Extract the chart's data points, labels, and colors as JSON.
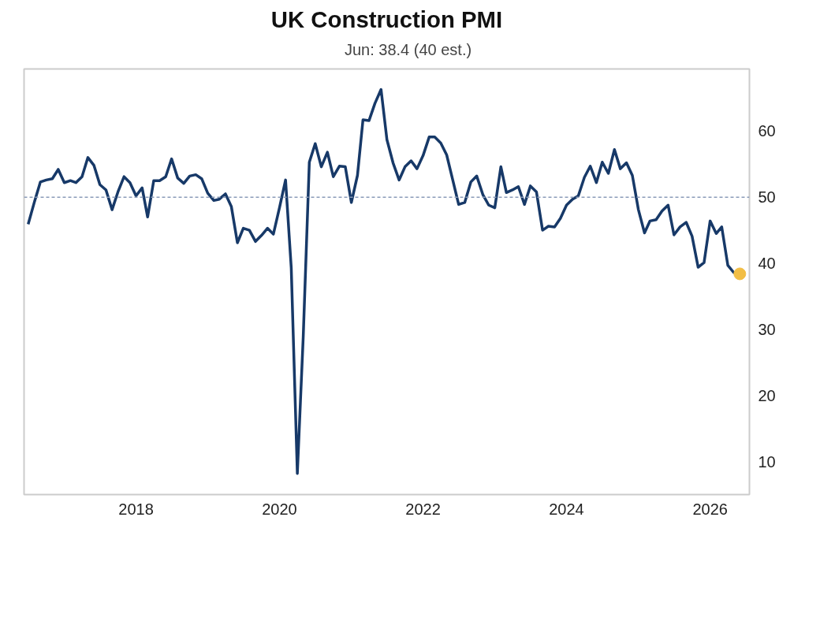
{
  "chart_data": {
    "type": "line",
    "title": "UK Construction PMI",
    "xlim": [
      "2016-06-10",
      "2026-07-20"
    ],
    "xticks": [
      "2018",
      "2020",
      "2022",
      "2024",
      "2026"
    ],
    "ylim": [
      5,
      69.4
    ],
    "yticks": [
      10,
      20,
      30,
      40,
      50,
      60
    ],
    "grid": false,
    "legend": "top",
    "line_style": "solid",
    "marker": "none",
    "ref_lines": [
      {
        "axis": "y",
        "value": 50,
        "color": "#8a9bb8",
        "line_style": "dashed"
      }
    ],
    "series": [
      {
        "name": "Jun: 38.4 (40 est.)",
        "color": "#173968",
        "x": [
          "2016-07",
          "2016-08",
          "2016-09",
          "2016-10",
          "2016-11",
          "2016-12",
          "2017-01",
          "2017-02",
          "2017-03",
          "2017-04",
          "2017-05",
          "2017-06",
          "2017-07",
          "2017-08",
          "2017-09",
          "2017-10",
          "2017-11",
          "2017-12",
          "2018-01",
          "2018-02",
          "2018-03",
          "2018-04",
          "2018-05",
          "2018-06",
          "2018-07",
          "2018-08",
          "2018-09",
          "2018-10",
          "2018-11",
          "2018-12",
          "2019-01",
          "2019-02",
          "2019-03",
          "2019-04",
          "2019-05",
          "2019-06",
          "2019-07",
          "2019-08",
          "2019-09",
          "2019-10",
          "2019-11",
          "2019-12",
          "2020-01",
          "2020-02",
          "2020-03",
          "2020-04",
          "2020-05",
          "2020-06",
          "2020-07",
          "2020-08",
          "2020-09",
          "2020-10",
          "2020-11",
          "2020-12",
          "2021-01",
          "2021-02",
          "2021-03",
          "2021-04",
          "2021-05",
          "2021-06",
          "2021-07",
          "2021-08",
          "2021-09",
          "2021-10",
          "2021-11",
          "2021-12",
          "2022-01",
          "2022-02",
          "2022-03",
          "2022-04",
          "2022-05",
          "2022-06",
          "2022-07",
          "2022-08",
          "2022-09",
          "2022-10",
          "2022-11",
          "2022-12",
          "2023-01",
          "2023-02",
          "2023-03",
          "2023-04",
          "2023-05",
          "2023-06",
          "2023-07",
          "2023-08",
          "2023-09",
          "2023-10",
          "2023-11",
          "2023-12",
          "2024-01",
          "2024-02",
          "2024-03",
          "2024-04",
          "2024-05",
          "2024-06",
          "2024-07",
          "2024-08",
          "2024-09",
          "2024-10",
          "2024-11",
          "2024-12",
          "2025-01",
          "2025-02",
          "2025-03",
          "2025-04",
          "2025-05",
          "2025-06",
          "2025-07",
          "2025-08",
          "2025-09",
          "2025-10",
          "2025-11",
          "2025-12",
          "2026-01",
          "2026-02",
          "2026-03",
          "2026-04",
          "2026-05",
          "2026-06"
        ],
        "values": [
          45.9,
          49.2,
          52.3,
          52.6,
          52.8,
          54.2,
          52.2,
          52.5,
          52.2,
          53.1,
          56.0,
          54.8,
          51.9,
          51.1,
          48.1,
          50.8,
          53.1,
          52.2,
          50.2,
          51.4,
          47.0,
          52.5,
          52.5,
          53.1,
          55.8,
          52.9,
          52.1,
          53.2,
          53.4,
          52.8,
          50.6,
          49.5,
          49.7,
          50.5,
          48.6,
          43.1,
          45.3,
          45.0,
          43.3,
          44.2,
          45.3,
          44.4,
          48.4,
          52.6,
          39.3,
          8.2,
          28.9,
          55.3,
          58.1,
          54.6,
          56.8,
          53.1,
          54.7,
          54.6,
          49.2,
          53.3,
          61.7,
          61.6,
          64.2,
          66.3,
          58.7,
          55.2,
          52.6,
          54.6,
          55.5,
          54.3,
          56.3,
          59.1,
          59.1,
          58.2,
          56.4,
          52.6,
          48.9,
          49.2,
          52.3,
          53.2,
          50.4,
          48.8,
          48.4,
          54.6,
          50.7,
          51.1,
          51.6,
          48.9,
          51.7,
          50.8,
          45.0,
          45.6,
          45.5,
          46.8,
          48.8,
          49.7,
          50.2,
          53.0,
          54.7,
          52.2,
          55.3,
          53.6,
          57.2,
          54.3,
          55.2,
          53.3,
          48.1,
          44.6,
          46.4,
          46.6,
          47.9,
          48.8,
          44.3,
          45.5,
          46.2,
          44.1,
          39.4,
          40.1,
          46.4,
          44.5,
          45.5,
          39.7,
          38.6,
          38.4
        ]
      },
      {
        "color": "#f2be45",
        "type": "scatter",
        "marker": "circle",
        "x": [
          "2026-06"
        ],
        "values": [
          38.4
        ]
      }
    ]
  }
}
